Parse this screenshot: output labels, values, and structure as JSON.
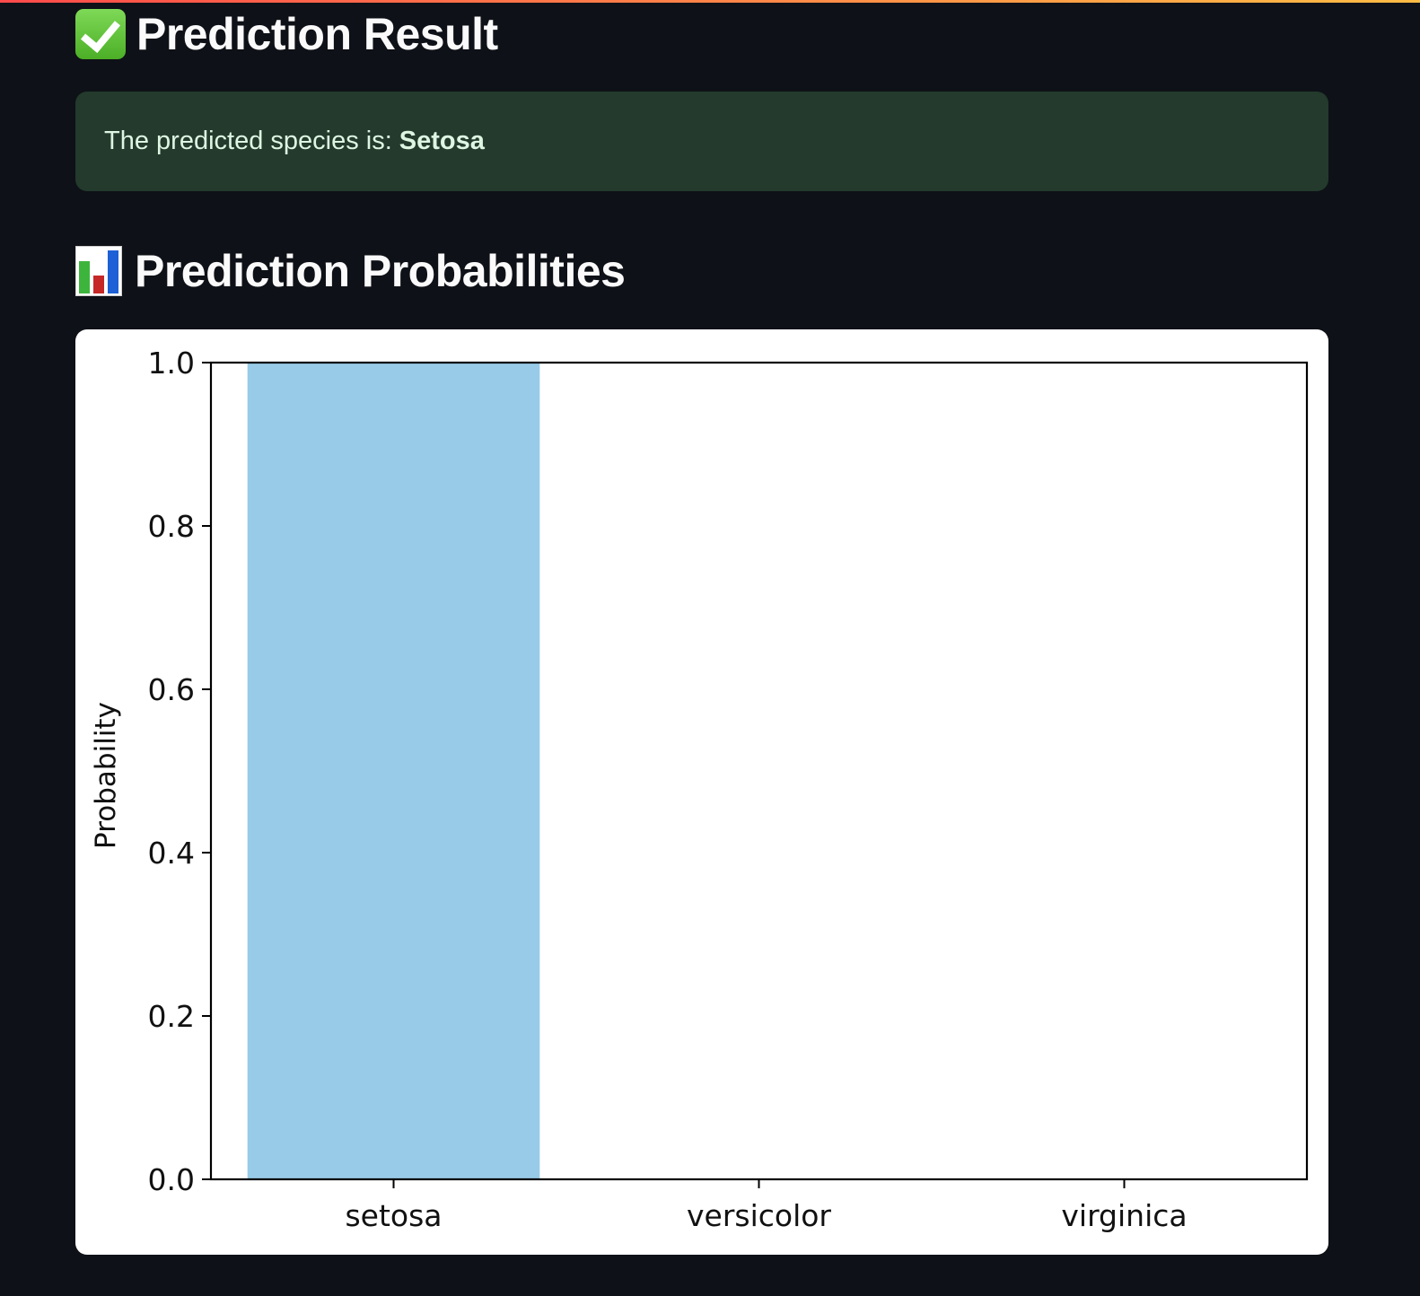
{
  "result_section": {
    "title": "Prediction Result",
    "icon": "check-mark-button-icon",
    "message_prefix": "The predicted species is:",
    "predicted_species": "Setosa",
    "box_color": "#233a2c"
  },
  "probabilities_section": {
    "title": "Prediction Probabilities",
    "icon": "bar-chart-icon"
  },
  "chart_data": {
    "type": "bar",
    "categories": [
      "setosa",
      "versicolor",
      "virginica"
    ],
    "values": [
      1.0,
      0.0,
      0.0
    ],
    "title": "",
    "xlabel": "",
    "ylabel": "Probability",
    "ylim": [
      0,
      1.0
    ],
    "yticks": [
      "0.0",
      "0.2",
      "0.4",
      "0.6",
      "0.8",
      "1.0"
    ],
    "bar_color": "#97cbe8",
    "grid": false
  }
}
